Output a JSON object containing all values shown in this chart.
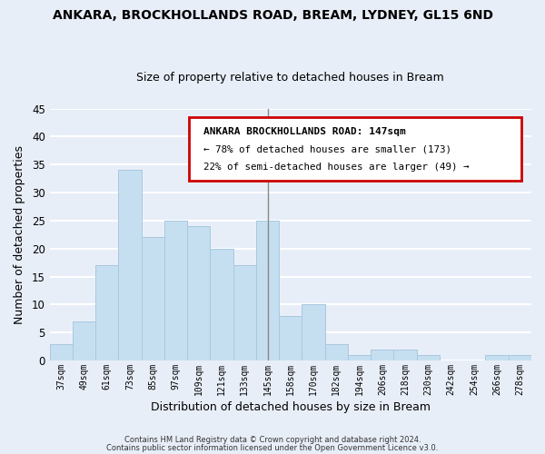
{
  "title": "ANKARA, BROCKHOLLANDS ROAD, BREAM, LYDNEY, GL15 6ND",
  "subtitle": "Size of property relative to detached houses in Bream",
  "xlabel": "Distribution of detached houses by size in Bream",
  "ylabel": "Number of detached properties",
  "footer_lines": [
    "Contains HM Land Registry data © Crown copyright and database right 2024.",
    "Contains public sector information licensed under the Open Government Licence v3.0."
  ],
  "categories": [
    "37sqm",
    "49sqm",
    "61sqm",
    "73sqm",
    "85sqm",
    "97sqm",
    "109sqm",
    "121sqm",
    "133sqm",
    "145sqm",
    "158sqm",
    "170sqm",
    "182sqm",
    "194sqm",
    "206sqm",
    "218sqm",
    "230sqm",
    "242sqm",
    "254sqm",
    "266sqm",
    "278sqm"
  ],
  "values": [
    3,
    7,
    17,
    34,
    22,
    25,
    24,
    20,
    17,
    25,
    8,
    10,
    3,
    1,
    2,
    2,
    1,
    0,
    0,
    1,
    1
  ],
  "bar_color": "#c5dff0",
  "bar_edge_color": "#a8c8e0",
  "background_color": "#e8eef8",
  "grid_color": "#ffffff",
  "annotation_box": {
    "title": "ANKARA BROCKHOLLANDS ROAD: 147sqm",
    "line1": "← 78% of detached houses are smaller (173)",
    "line2": "22% of semi-detached houses are larger (49) →",
    "border_color": "#cc0000",
    "bg_color": "#ffffff"
  },
  "vline_x_index": 9,
  "ylim": [
    0,
    45
  ],
  "yticks": [
    0,
    5,
    10,
    15,
    20,
    25,
    30,
    35,
    40,
    45
  ]
}
